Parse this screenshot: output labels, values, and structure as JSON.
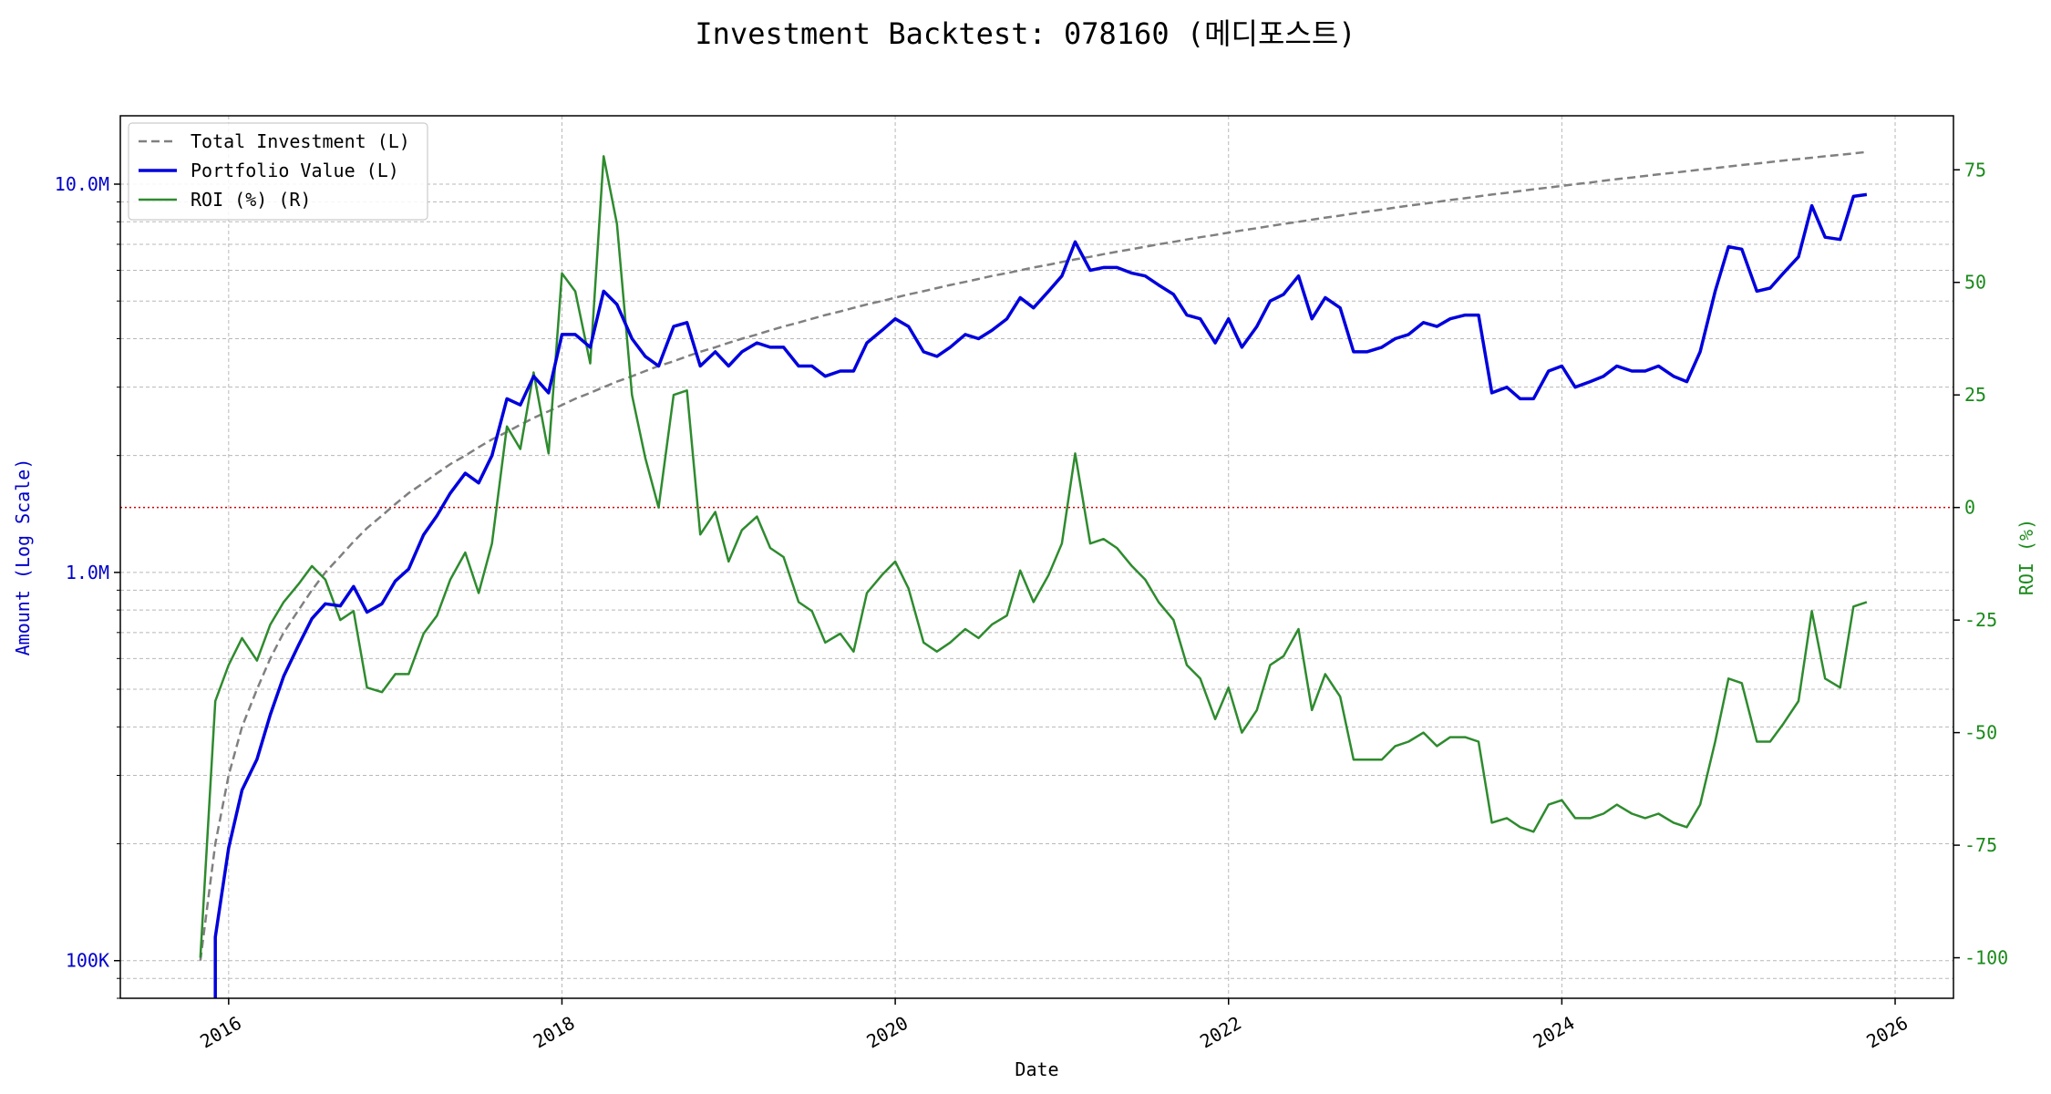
{
  "chart_data": {
    "type": "line",
    "title": "Investment Backtest: 078160 (메디포스트)",
    "xlabel": "Date",
    "ylabel_left": "Amount (Log Scale)",
    "ylabel_right": "ROI (%)",
    "x_ticks": [
      "2016",
      "2018",
      "2020",
      "2022",
      "2024",
      "2026"
    ],
    "x_range": [
      2015.35,
      2026.35
    ],
    "y_left_scale": "log",
    "y_left_range": [
      80000,
      15000000
    ],
    "y_left_ticks": [
      {
        "value": 100000,
        "label": "100K"
      },
      {
        "value": 1000000,
        "label": "1.0M"
      },
      {
        "value": 10000000,
        "label": "10.0M"
      }
    ],
    "y_right_range": [
      -109,
      87
    ],
    "y_right_ticks": [
      -100,
      -75,
      -50,
      -25,
      0,
      25,
      50,
      75
    ],
    "zero_line": 0,
    "grid": true,
    "legend_position": "upper-left",
    "colors": {
      "total_investment": "#808080",
      "portfolio_value": "#0000dd",
      "roi": "#2e8b2e",
      "zero_line": "#cc0000",
      "left_axis": "#0000cc",
      "right_axis": "#1a8a1a"
    },
    "x": [
      2015.83,
      2015.92,
      2016.0,
      2016.08,
      2016.17,
      2016.25,
      2016.33,
      2016.42,
      2016.5,
      2016.58,
      2016.67,
      2016.75,
      2016.83,
      2016.92,
      2017.0,
      2017.08,
      2017.17,
      2017.25,
      2017.33,
      2017.42,
      2017.5,
      2017.58,
      2017.67,
      2017.75,
      2017.83,
      2017.92,
      2018.0,
      2018.08,
      2018.17,
      2018.25,
      2018.33,
      2018.42,
      2018.5,
      2018.58,
      2018.67,
      2018.75,
      2018.83,
      2018.92,
      2019.0,
      2019.08,
      2019.17,
      2019.25,
      2019.33,
      2019.42,
      2019.5,
      2019.58,
      2019.67,
      2019.75,
      2019.83,
      2019.92,
      2020.0,
      2020.08,
      2020.17,
      2020.25,
      2020.33,
      2020.42,
      2020.5,
      2020.58,
      2020.67,
      2020.75,
      2020.83,
      2020.92,
      2021.0,
      2021.08,
      2021.17,
      2021.25,
      2021.33,
      2021.42,
      2021.5,
      2021.58,
      2021.67,
      2021.75,
      2021.83,
      2021.92,
      2022.0,
      2022.08,
      2022.17,
      2022.25,
      2022.33,
      2022.42,
      2022.5,
      2022.58,
      2022.67,
      2022.75,
      2022.83,
      2022.92,
      2023.0,
      2023.08,
      2023.17,
      2023.25,
      2023.33,
      2023.42,
      2023.5,
      2023.58,
      2023.67,
      2023.75,
      2023.83,
      2023.92,
      2024.0,
      2024.08,
      2024.17,
      2024.25,
      2024.33,
      2024.42,
      2024.5,
      2024.58,
      2024.67,
      2024.75,
      2024.83,
      2024.92,
      2025.0,
      2025.08,
      2025.17,
      2025.25,
      2025.33,
      2025.42,
      2025.5,
      2025.58,
      2025.67,
      2025.75,
      2025.83
    ],
    "series": [
      {
        "name": "Total Investment (L)",
        "style": "dashed",
        "values": [
          100000,
          200000,
          300000,
          400000,
          500000,
          600000,
          700000,
          800000,
          900000,
          1000000,
          1100000,
          1200000,
          1300000,
          1400000,
          1500000,
          1600000,
          1700000,
          1800000,
          1900000,
          2000000,
          2100000,
          2200000,
          2300000,
          2400000,
          2500000,
          2600000,
          2700000,
          2800000,
          2900000,
          3000000,
          3100000,
          3200000,
          3300000,
          3400000,
          3500000,
          3600000,
          3700000,
          3800000,
          3900000,
          4000000,
          4100000,
          4200000,
          4300000,
          4400000,
          4500000,
          4600000,
          4700000,
          4800000,
          4900000,
          5000000,
          5100000,
          5200000,
          5300000,
          5400000,
          5500000,
          5600000,
          5700000,
          5800000,
          5900000,
          6000000,
          6100000,
          6200000,
          6300000,
          6400000,
          6500000,
          6600000,
          6700000,
          6800000,
          6900000,
          7000000,
          7100000,
          7200000,
          7300000,
          7400000,
          7500000,
          7600000,
          7700000,
          7800000,
          7900000,
          8000000,
          8100000,
          8200000,
          8300000,
          8400000,
          8500000,
          8600000,
          8700000,
          8800000,
          8900000,
          9000000,
          9100000,
          9200000,
          9300000,
          9400000,
          9500000,
          9600000,
          9700000,
          9800000,
          9900000,
          10000000,
          10100000,
          10200000,
          10300000,
          10400000,
          10500000,
          10600000,
          10700000,
          10800000,
          10900000,
          11000000,
          11100000,
          11200000,
          11300000,
          11400000,
          11500000,
          11600000,
          11700000,
          11800000,
          11900000,
          12000000,
          12100000
        ]
      },
      {
        "name": "Portfolio Value (L)",
        "style": "solid-thick",
        "values": [
          null,
          115000,
          195000,
          275000,
          330000,
          430000,
          540000,
          650000,
          760000,
          830000,
          820000,
          920000,
          790000,
          830000,
          950000,
          1020000,
          1250000,
          1400000,
          1600000,
          1800000,
          1700000,
          2000000,
          2800000,
          2700000,
          3200000,
          2900000,
          4100000,
          4100000,
          3800000,
          5300000,
          4900000,
          4000000,
          3600000,
          3400000,
          4300000,
          4400000,
          3400000,
          3700000,
          3400000,
          3700000,
          3900000,
          3800000,
          3800000,
          3400000,
          3400000,
          3200000,
          3300000,
          3300000,
          3900000,
          4200000,
          4500000,
          4300000,
          3700000,
          3600000,
          3800000,
          4100000,
          4000000,
          4200000,
          4500000,
          5100000,
          4800000,
          5300000,
          5800000,
          7100000,
          6000000,
          6100000,
          6100000,
          5900000,
          5800000,
          5500000,
          5200000,
          4600000,
          4500000,
          3900000,
          4500000,
          3800000,
          4300000,
          5000000,
          5200000,
          5800000,
          4500000,
          5100000,
          4800000,
          3700000,
          3700000,
          3800000,
          4000000,
          4100000,
          4400000,
          4300000,
          4500000,
          4600000,
          4600000,
          2900000,
          3000000,
          2800000,
          2800000,
          3300000,
          3400000,
          3000000,
          3100000,
          3200000,
          3400000,
          3300000,
          3300000,
          3400000,
          3200000,
          3100000,
          3700000,
          5300000,
          6900000,
          6800000,
          5300000,
          5400000,
          5900000,
          6500000,
          8800000,
          7300000,
          7200000,
          9300000,
          9400000
        ]
      },
      {
        "name": "ROI (%) (R)",
        "style": "solid",
        "axis": "right",
        "values": [
          -100,
          -43,
          -35,
          -29,
          -34,
          -26,
          -21,
          -17,
          -13,
          -16,
          -25,
          -23,
          -40,
          -41,
          -37,
          -37,
          -28,
          -24,
          -16,
          -10,
          -19,
          -8,
          18,
          13,
          30,
          12,
          52,
          48,
          32,
          78,
          63,
          25,
          11,
          0,
          25,
          26,
          -6,
          -1,
          -12,
          -5,
          -2,
          -9,
          -11,
          -21,
          -23,
          -30,
          -28,
          -32,
          -19,
          -15,
          -12,
          -18,
          -30,
          -32,
          -30,
          -27,
          -29,
          -26,
          -24,
          -14,
          -21,
          -15,
          -8,
          12,
          -8,
          -7,
          -9,
          -13,
          -16,
          -21,
          -25,
          -35,
          -38,
          -47,
          -40,
          -50,
          -45,
          -35,
          -33,
          -27,
          -45,
          -37,
          -42,
          -56,
          -56,
          -56,
          -53,
          -52,
          -50,
          -53,
          -51,
          -51,
          -52,
          -70,
          -69,
          -71,
          -72,
          -66,
          -65,
          -69,
          -69,
          -68,
          -66,
          -68,
          -69,
          -68,
          -70,
          -71,
          -66,
          -52,
          -38,
          -39,
          -52,
          -52,
          -48,
          -43,
          -23,
          -38,
          -40,
          -22,
          -21
        ]
      }
    ]
  }
}
